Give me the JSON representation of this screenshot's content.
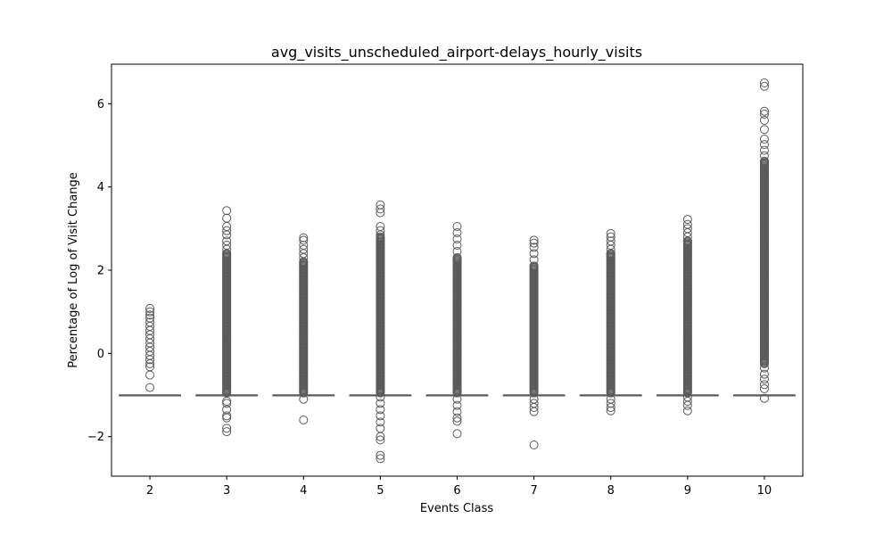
{
  "chart_data": {
    "type": "box",
    "title": "avg_visits_unscheduled_airport-delays_hourly_visits",
    "xlabel": "Events Class",
    "ylabel": "Percentage of Log of Visit Change",
    "categories": [
      "2",
      "3",
      "4",
      "5",
      "6",
      "7",
      "8",
      "9",
      "10"
    ],
    "ylim": [
      -2.95,
      6.95
    ],
    "yticks": [
      -2,
      0,
      2,
      4,
      6
    ],
    "ytick_labels": [
      "−2",
      "0",
      "2",
      "4",
      "6"
    ],
    "grid": false,
    "box_color": "#5a5a5a",
    "series": [
      {
        "category": "2",
        "median": -1.0,
        "q1": -1.0,
        "q3": -1.0,
        "whisker_low": -1.0,
        "whisker_high": -1.0,
        "outliers": [
          1.08,
          1.0,
          0.92,
          0.85,
          0.75,
          0.65,
          0.55,
          0.45,
          0.35,
          0.25,
          0.15,
          0.05,
          -0.05,
          -0.15,
          -0.25,
          -0.32,
          -0.52,
          -0.82
        ]
      },
      {
        "category": "3",
        "median": -1.0,
        "q1": -1.0,
        "q3": -1.0,
        "whisker_low": -1.0,
        "whisker_high": -1.0,
        "outliers": [
          3.43,
          3.25,
          3.05,
          2.95,
          2.85,
          2.7,
          2.6,
          2.5,
          2.4,
          -1.15,
          -1.2,
          -1.35,
          -1.5,
          -1.55,
          -1.8,
          -1.88
        ],
        "outlier_dense_range": [
          -0.95,
          2.4
        ]
      },
      {
        "category": "4",
        "median": -1.0,
        "q1": -1.0,
        "q3": -1.0,
        "whisker_low": -1.0,
        "whisker_high": -1.0,
        "outliers": [
          2.78,
          2.72,
          2.6,
          2.5,
          2.4,
          2.3,
          2.2,
          -1.1,
          -1.6
        ],
        "outlier_dense_range": [
          -0.95,
          2.2
        ]
      },
      {
        "category": "5",
        "median": -1.0,
        "q1": -1.0,
        "q3": -1.0,
        "whisker_low": -1.0,
        "whisker_high": -1.0,
        "outliers": [
          3.57,
          3.47,
          3.38,
          3.05,
          2.95,
          2.85,
          -1.05,
          -1.2,
          -1.35,
          -1.5,
          -1.65,
          -1.8,
          -2.0,
          -2.08,
          -2.45,
          -2.53
        ],
        "outlier_dense_range": [
          -0.95,
          2.8
        ]
      },
      {
        "category": "6",
        "median": -1.0,
        "q1": -1.0,
        "q3": -1.0,
        "whisker_low": -1.0,
        "whisker_high": -1.0,
        "outliers": [
          3.05,
          2.9,
          2.75,
          2.6,
          2.45,
          2.3,
          -1.1,
          -1.25,
          -1.4,
          -1.55,
          -1.63,
          -1.93
        ],
        "outlier_dense_range": [
          -0.95,
          2.3
        ]
      },
      {
        "category": "7",
        "median": -1.0,
        "q1": -1.0,
        "q3": -1.0,
        "whisker_low": -1.0,
        "whisker_high": -1.0,
        "outliers": [
          2.72,
          2.65,
          2.55,
          2.4,
          2.25,
          2.1,
          -1.1,
          -1.2,
          -1.3,
          -1.4,
          -2.2
        ],
        "outlier_dense_range": [
          -0.95,
          2.1
        ]
      },
      {
        "category": "8",
        "median": -1.0,
        "q1": -1.0,
        "q3": -1.0,
        "whisker_low": -1.0,
        "whisker_high": -1.0,
        "outliers": [
          2.88,
          2.8,
          2.7,
          2.6,
          2.5,
          2.4,
          -1.1,
          -1.2,
          -1.3,
          -1.38
        ],
        "outlier_dense_range": [
          -0.95,
          2.4
        ]
      },
      {
        "category": "9",
        "median": -1.0,
        "q1": -1.0,
        "q3": -1.0,
        "whisker_low": -1.0,
        "whisker_high": -1.0,
        "outliers": [
          3.22,
          3.1,
          3.0,
          2.9,
          2.8,
          2.7,
          -1.05,
          -1.15,
          -1.25,
          -1.38
        ],
        "outlier_dense_range": [
          -0.95,
          2.7
        ]
      },
      {
        "category": "10",
        "median": -1.0,
        "q1": -1.0,
        "q3": -1.0,
        "whisker_low": -1.0,
        "whisker_high": -1.0,
        "outliers": [
          6.5,
          6.42,
          5.82,
          5.75,
          5.6,
          5.38,
          5.15,
          5.02,
          4.88,
          4.75,
          4.62,
          -0.35,
          -0.5,
          -0.62,
          -0.75,
          -0.85,
          -1.08
        ],
        "outlier_dense_range": [
          -0.25,
          4.6
        ]
      }
    ]
  }
}
